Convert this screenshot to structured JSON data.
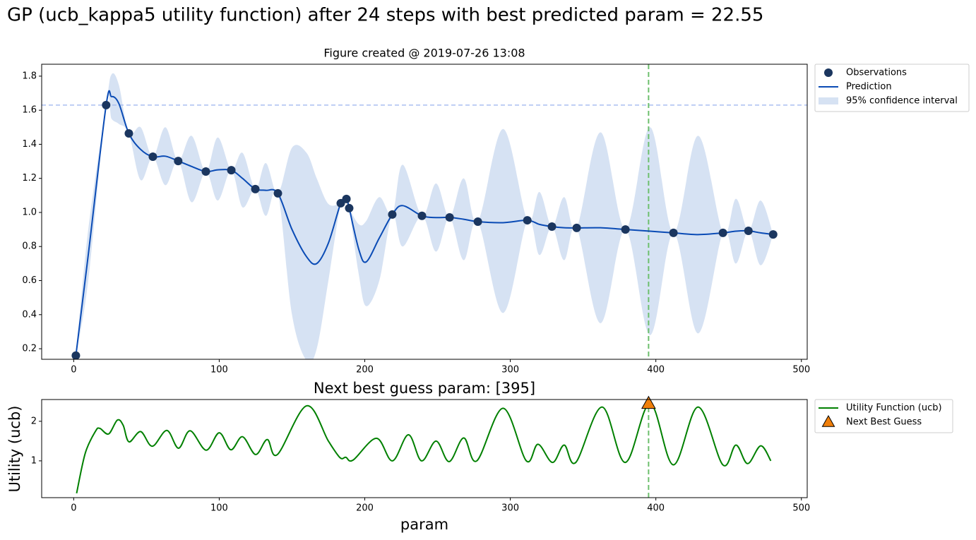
{
  "chart_data": [
    {
      "type": "gp",
      "title": "GP (ucb_kappa5 utility function) after 24 steps with best predicted param = 22.55",
      "subtitle": "Figure created @ 2019-07-26 13:08",
      "xlim": [
        -22,
        504
      ],
      "ylim": [
        0.138,
        1.87
      ],
      "xticks": [
        0,
        100,
        200,
        300,
        400,
        500
      ],
      "yticks": [
        0.2,
        0.4,
        0.6,
        0.8,
        {
          "value": 1,
          "label": "1.0"
        },
        1.2,
        1.4,
        1.6,
        1.8
      ],
      "legend": "outside upper right",
      "hline": {
        "value": 1.63,
        "color": "#aabff0"
      },
      "vline": {
        "value": 395,
        "color": "#6dbf6d"
      },
      "observations": {
        "name": "Observations",
        "color": "#1b365f",
        "x": [
          1.5,
          22.3,
          37.9,
          54.4,
          71.8,
          90.8,
          108.3,
          124.8,
          140.3,
          183.5,
          187.4,
          189.3,
          218.9,
          239.3,
          258.3,
          277.7,
          311.7,
          328.6,
          345.6,
          379.1,
          412.1,
          446.1,
          463.6,
          480.6
        ],
        "values": [
          0.16,
          1.63,
          1.464,
          1.327,
          1.302,
          1.24,
          1.248,
          1.137,
          1.112,
          1.054,
          1.079,
          1.025,
          0.988,
          0.98,
          0.971,
          0.946,
          0.954,
          0.917,
          0.909,
          0.9,
          0.88,
          0.88,
          0.892,
          0.871
        ]
      },
      "prediction": {
        "name": "Prediction",
        "color": "#0a4bb5",
        "x": [
          1.5,
          10,
          22.3,
          26,
          31,
          37.9,
          46,
          54.4,
          63,
          71.8,
          81,
          90.8,
          99,
          108.3,
          116,
          124.8,
          132,
          140.3,
          150,
          160,
          167,
          175,
          183.5,
          187.4,
          189.3,
          196,
          201,
          210,
          218.9,
          226,
          239.3,
          249,
          258.3,
          268,
          277.7,
          295,
          311.7,
          320,
          328.6,
          337,
          345.6,
          362,
          379.1,
          396,
          412.1,
          429,
          446.1,
          455,
          463.6,
          472,
          480.6
        ],
        "values": [
          0.16,
          0.75,
          1.63,
          1.68,
          1.64,
          1.464,
          1.37,
          1.327,
          1.33,
          1.302,
          1.27,
          1.24,
          1.25,
          1.248,
          1.2,
          1.137,
          1.13,
          1.112,
          0.9,
          0.74,
          0.7,
          0.82,
          1.054,
          1.079,
          1.025,
          0.78,
          0.71,
          0.85,
          0.988,
          1.04,
          0.98,
          0.97,
          0.971,
          0.96,
          0.946,
          0.94,
          0.954,
          0.93,
          0.917,
          0.91,
          0.909,
          0.91,
          0.9,
          0.89,
          0.88,
          0.87,
          0.88,
          0.89,
          0.892,
          0.88,
          0.871
        ]
      },
      "confidence": {
        "name": "95% confidence interval",
        "color": "#d6e2f3",
        "x": [
          1.5,
          10,
          22.3,
          26,
          31,
          37.9,
          46,
          54.4,
          63,
          71.8,
          81,
          90.8,
          99,
          108.3,
          116,
          124.8,
          132,
          140.3,
          150,
          160,
          167,
          175,
          183.5,
          187.4,
          189.3,
          196,
          201,
          210,
          218.9,
          226,
          239.3,
          249,
          258.3,
          268,
          277.7,
          295,
          311.7,
          320,
          328.6,
          337,
          345.6,
          362,
          379.1,
          396,
          412.1,
          429,
          446.1,
          455,
          463.6,
          472,
          480.6
        ],
        "lower": [
          0.16,
          0.6,
          1.63,
          1.55,
          1.52,
          1.464,
          1.19,
          1.327,
          1.16,
          1.302,
          1.06,
          1.24,
          1.07,
          1.248,
          1.03,
          1.137,
          0.98,
          1.112,
          0.4,
          0.13,
          0.2,
          0.6,
          1.054,
          1.079,
          1.025,
          0.63,
          0.45,
          0.6,
          0.988,
          0.8,
          0.98,
          0.77,
          0.971,
          0.72,
          0.946,
          0.41,
          0.954,
          0.75,
          0.917,
          0.72,
          0.909,
          0.35,
          0.9,
          0.28,
          0.88,
          0.29,
          0.88,
          0.7,
          0.892,
          0.69,
          0.871
        ],
        "upper": [
          0.16,
          0.9,
          1.63,
          1.81,
          1.75,
          1.464,
          1.5,
          1.327,
          1.5,
          1.302,
          1.45,
          1.24,
          1.44,
          1.248,
          1.35,
          1.137,
          1.29,
          1.112,
          1.38,
          1.35,
          1.2,
          1.05,
          1.054,
          1.079,
          1.025,
          0.93,
          0.95,
          1.09,
          0.988,
          1.28,
          0.98,
          1.17,
          0.971,
          1.2,
          0.946,
          1.49,
          0.954,
          1.12,
          0.917,
          1.09,
          0.909,
          1.47,
          0.9,
          1.5,
          0.88,
          1.45,
          0.88,
          1.08,
          0.892,
          1.07,
          0.871
        ]
      }
    },
    {
      "type": "line",
      "title": "Next best guess param: [395]",
      "x_label": "param",
      "y_label": "Utility (ucb)",
      "xlim": [
        -22,
        504
      ],
      "ylim": [
        0.07,
        2.55
      ],
      "xticks": [
        0,
        100,
        200,
        300,
        400,
        500
      ],
      "yticks": [
        1,
        2
      ],
      "legend": "outside upper right",
      "vline": {
        "value": 395,
        "color": "#6dbf6d"
      },
      "series": [
        {
          "name": "Utility Function (ucb)",
          "color": "#008000",
          "x": [
            2,
            8,
            15,
            18,
            24,
            30,
            34,
            38,
            46,
            54,
            64,
            72,
            80,
            91,
            100,
            108,
            116,
            125,
            133,
            140,
            160,
            175,
            183,
            187,
            192,
            208,
            219,
            230,
            239,
            249,
            258,
            268,
            277,
            295,
            311,
            319,
            329,
            337,
            345,
            363,
            379,
            396,
            412,
            429,
            446,
            455,
            463,
            472,
            479
          ],
          "values": [
            0.18,
            1.2,
            1.75,
            1.82,
            1.68,
            2.03,
            1.9,
            1.48,
            1.74,
            1.37,
            1.77,
            1.32,
            1.76,
            1.27,
            1.71,
            1.28,
            1.61,
            1.16,
            1.54,
            1.16,
            2.39,
            1.5,
            1.08,
            1.09,
            1.02,
            1.57,
            1,
            1.66,
            1,
            1.5,
            0.98,
            1.58,
            1,
            2.33,
            1,
            1.42,
            0.96,
            1.4,
            0.96,
            2.36,
            0.96,
            2.45,
            0.9,
            2.36,
            0.9,
            1.4,
            0.93,
            1.38,
            1
          ]
        }
      ],
      "marker": {
        "name": "Next Best Guess",
        "color": "#f07f0a",
        "x": [
          395
        ],
        "values": [
          2.45
        ]
      }
    }
  ]
}
